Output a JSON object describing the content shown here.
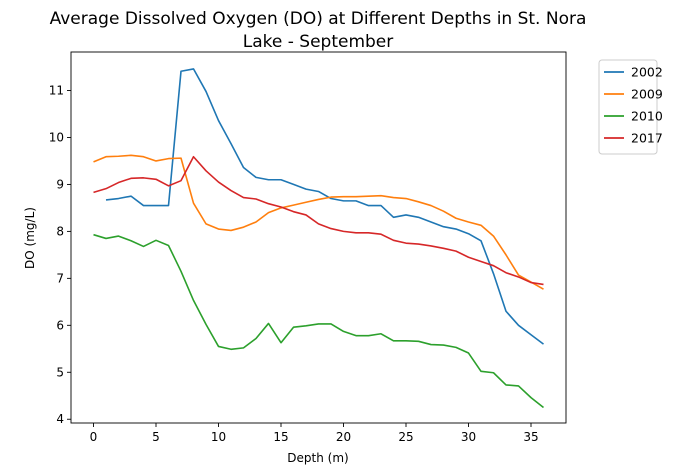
{
  "chart_data": {
    "type": "line",
    "title_lines": [
      "Average Dissolved Oxygen (DO) at Different Depths in St. Nora",
      "Lake - September"
    ],
    "xlabel": "Depth (m)",
    "ylabel": "DO (mg/L)",
    "xlim": [
      -1.8,
      37.8
    ],
    "ylim": [
      3.92,
      11.82
    ],
    "xticks": [
      0,
      5,
      10,
      15,
      20,
      25,
      30,
      35
    ],
    "yticks": [
      4,
      5,
      6,
      7,
      8,
      9,
      10,
      11
    ],
    "grid": false,
    "legend_position": "outside-top-right",
    "series": [
      {
        "name": "2002",
        "color": "#1f77b4",
        "x": [
          1,
          2,
          3,
          4,
          5,
          6,
          7,
          8,
          9,
          10,
          11,
          12,
          13,
          14,
          15,
          16,
          17,
          18,
          19,
          20,
          21,
          22,
          23,
          24,
          25,
          26,
          27,
          28,
          29,
          30,
          31,
          32,
          33,
          34,
          35,
          36
        ],
        "y": [
          8.67,
          8.7,
          8.75,
          8.55,
          8.55,
          8.55,
          11.41,
          11.46,
          10.98,
          10.36,
          9.87,
          9.36,
          9.15,
          9.1,
          9.1,
          9.0,
          8.9,
          8.85,
          8.7,
          8.65,
          8.65,
          8.55,
          8.55,
          8.3,
          8.35,
          8.3,
          8.2,
          8.1,
          8.05,
          7.95,
          7.8,
          7.1,
          6.3,
          6.0,
          5.8,
          5.6
        ]
      },
      {
        "name": "2009",
        "color": "#ff7f0e",
        "x": [
          0,
          1,
          2,
          3,
          4,
          5,
          6,
          7,
          8,
          9,
          10,
          11,
          12,
          13,
          14,
          15,
          16,
          17,
          18,
          19,
          20,
          21,
          22,
          23,
          24,
          25,
          26,
          27,
          28,
          29,
          30,
          31,
          32,
          33,
          34,
          35,
          36
        ],
        "y": [
          9.48,
          9.59,
          9.6,
          9.62,
          9.59,
          9.5,
          9.55,
          9.56,
          8.6,
          8.16,
          8.05,
          8.02,
          8.09,
          8.2,
          8.4,
          8.5,
          8.56,
          8.62,
          8.68,
          8.73,
          8.74,
          8.74,
          8.75,
          8.76,
          8.72,
          8.7,
          8.63,
          8.55,
          8.43,
          8.28,
          8.2,
          8.13,
          7.9,
          7.5,
          7.07,
          6.92,
          6.77
        ]
      },
      {
        "name": "2010",
        "color": "#2ca02c",
        "x": [
          0,
          1,
          2,
          3,
          4,
          5,
          6,
          7,
          8,
          9,
          10,
          11,
          12,
          13,
          14,
          15,
          16,
          17,
          18,
          19,
          20,
          21,
          22,
          23,
          24,
          25,
          26,
          27,
          28,
          29,
          30,
          31,
          32,
          33,
          34,
          35,
          36
        ],
        "y": [
          7.93,
          7.85,
          7.9,
          7.8,
          7.68,
          7.81,
          7.7,
          7.15,
          6.53,
          6.02,
          5.55,
          5.49,
          5.52,
          5.72,
          6.04,
          5.63,
          5.96,
          5.99,
          6.03,
          6.03,
          5.87,
          5.78,
          5.78,
          5.82,
          5.67,
          5.67,
          5.66,
          5.59,
          5.58,
          5.53,
          5.41,
          5.02,
          4.99,
          4.73,
          4.71,
          4.46,
          4.25
        ]
      },
      {
        "name": "2017",
        "color": "#d62728",
        "x": [
          0,
          1,
          2,
          3,
          4,
          5,
          6,
          7,
          8,
          9,
          10,
          11,
          12,
          13,
          14,
          15,
          16,
          17,
          18,
          19,
          20,
          21,
          22,
          23,
          24,
          25,
          26,
          27,
          28,
          29,
          30,
          31,
          32,
          33,
          34,
          35,
          36
        ],
        "y": [
          8.83,
          8.91,
          9.04,
          9.13,
          9.14,
          9.11,
          8.97,
          9.08,
          9.59,
          9.29,
          9.05,
          8.87,
          8.72,
          8.69,
          8.59,
          8.52,
          8.42,
          8.35,
          8.16,
          8.06,
          8.0,
          7.97,
          7.97,
          7.94,
          7.81,
          7.75,
          7.73,
          7.69,
          7.64,
          7.58,
          7.45,
          7.36,
          7.27,
          7.12,
          7.03,
          6.91,
          6.87
        ]
      }
    ]
  }
}
